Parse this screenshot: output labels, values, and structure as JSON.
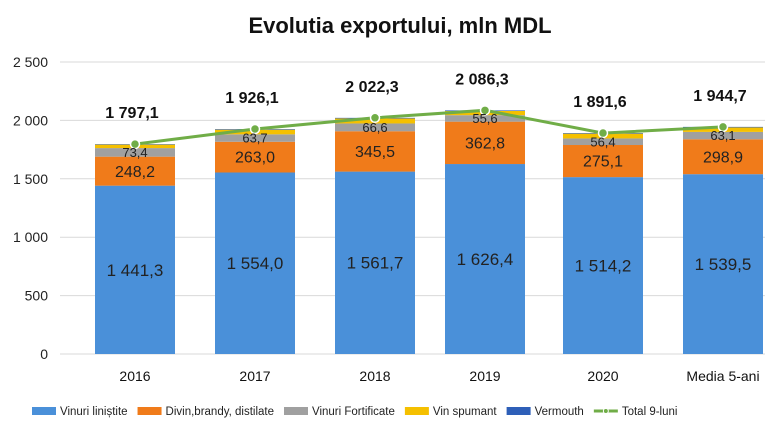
{
  "chart_data": {
    "type": "bar",
    "stacked": true,
    "title": "Evolutia exportului, mln MDL",
    "categories": [
      "2016",
      "2017",
      "2018",
      "2019",
      "2020",
      "Media 5-ani"
    ],
    "ylim": [
      0,
      2500
    ],
    "yticks": [
      "0",
      "500",
      "1 000",
      "1 500",
      "2 000",
      "2 500"
    ],
    "ytick_values": [
      0,
      500,
      1000,
      1500,
      2000,
      2500
    ],
    "grid": true,
    "legend_position": "bottom",
    "series": [
      {
        "name": "Vinuri liniștite",
        "color": "#4a90d9",
        "values": [
          1441.3,
          1554.0,
          1561.7,
          1626.4,
          1514.2,
          1539.5
        ],
        "labels": [
          "1 441,3",
          "1 554,0",
          "1 561,7",
          "1 626,4",
          "1 514,2",
          "1 539,5"
        ]
      },
      {
        "name": "Divin,brandy, distilate",
        "color": "#f07b1a",
        "values": [
          248.2,
          263.0,
          345.5,
          362.8,
          275.1,
          298.9
        ],
        "labels": [
          "248,2",
          "263,0",
          "345,5",
          "362,8",
          "275,1",
          "298,9"
        ]
      },
      {
        "name": "Vinuri Fortificate",
        "color": "#a0a0a0",
        "values": [
          73.4,
          63.7,
          66.6,
          55.6,
          56.4,
          63.1
        ],
        "labels": [
          "73,4",
          "63,7",
          "66,6",
          "55,6",
          "56,4",
          "63,1"
        ]
      },
      {
        "name": "Vin spumant",
        "color": "#f5c000",
        "values": [
          30,
          40,
          43,
          36,
          41,
          38
        ]
      },
      {
        "name": "Vermouth",
        "color": "#2e5fb8",
        "values": [
          4,
          5,
          5,
          5,
          5,
          5
        ]
      }
    ],
    "line": {
      "name": "Total 9-luni",
      "color": "#70ad47",
      "values": [
        1797.1,
        1926.1,
        2022.3,
        2086.3,
        1891.6,
        1944.7
      ],
      "labels": [
        "1 797,1",
        "1 926,1",
        "2 022,3",
        "2 086,3",
        "1 891,6",
        "1 944,7"
      ]
    }
  }
}
